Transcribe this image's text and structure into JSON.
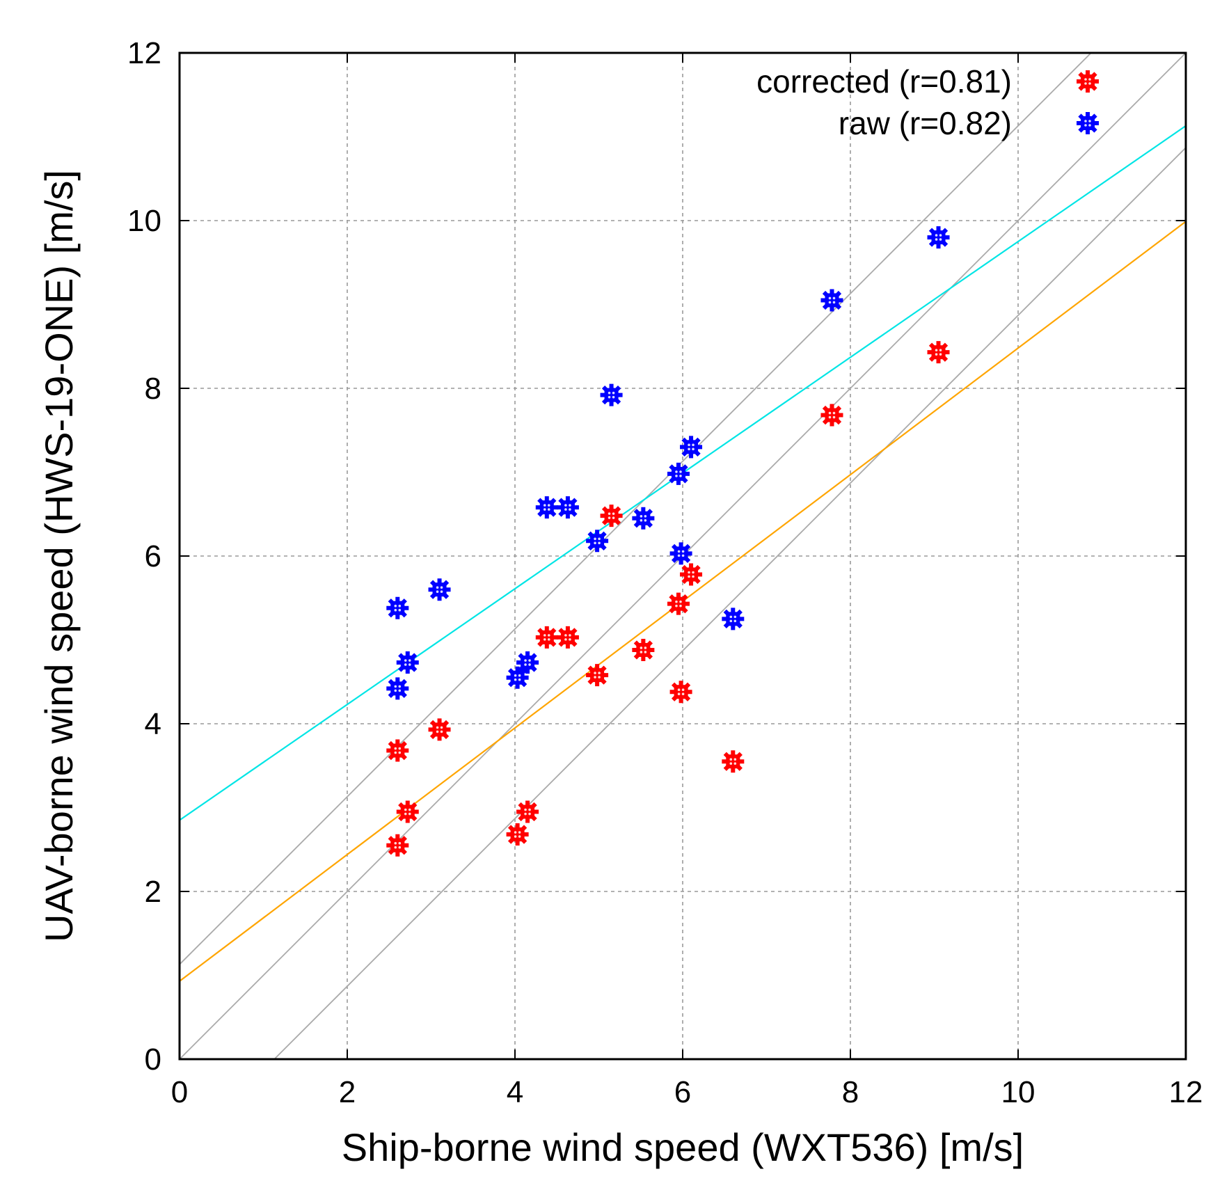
{
  "chart_data": {
    "type": "scatter",
    "title": "",
    "xlabel": "Ship-borne wind speed (WXT536) [m/s]",
    "ylabel": "UAV-borne wind speed (HWS-19-ONE) [m/s]",
    "xlim": [
      0,
      12
    ],
    "ylim": [
      0,
      12
    ],
    "xticks": [
      "0",
      "2",
      "4",
      "6",
      "8",
      "10",
      "12"
    ],
    "yticks": [
      "0",
      "2",
      "4",
      "6",
      "8",
      "10",
      "12"
    ],
    "grid": true,
    "legend_position": "top-right",
    "series": [
      {
        "name": "corrected (r=0.81)",
        "color": "#ff0000",
        "marker": "asterisk",
        "points": [
          [
            2.6,
            2.55
          ],
          [
            2.6,
            3.68
          ],
          [
            2.72,
            2.95
          ],
          [
            3.1,
            3.93
          ],
          [
            4.03,
            2.68
          ],
          [
            4.15,
            2.95
          ],
          [
            4.38,
            5.03
          ],
          [
            4.63,
            5.03
          ],
          [
            4.98,
            4.58
          ],
          [
            5.15,
            6.48
          ],
          [
            5.53,
            4.88
          ],
          [
            5.95,
            5.43
          ],
          [
            5.98,
            4.38
          ],
          [
            6.1,
            5.78
          ],
          [
            6.6,
            3.55
          ],
          [
            7.78,
            7.68
          ],
          [
            9.05,
            8.43
          ]
        ]
      },
      {
        "name": "raw (r=0.82)",
        "color": "#0000ff",
        "marker": "asterisk",
        "points": [
          [
            2.6,
            4.42
          ],
          [
            2.6,
            5.38
          ],
          [
            2.72,
            4.73
          ],
          [
            3.1,
            5.6
          ],
          [
            4.03,
            4.55
          ],
          [
            4.15,
            4.73
          ],
          [
            4.38,
            6.58
          ],
          [
            4.63,
            6.58
          ],
          [
            4.98,
            6.18
          ],
          [
            5.15,
            7.92
          ],
          [
            5.53,
            6.45
          ],
          [
            5.95,
            6.98
          ],
          [
            5.98,
            6.03
          ],
          [
            6.1,
            7.3
          ],
          [
            6.6,
            5.25
          ],
          [
            7.78,
            9.05
          ],
          [
            9.05,
            9.8
          ]
        ]
      }
    ],
    "fit_lines": [
      {
        "name": "corrected fit",
        "color": "#ffa500",
        "intercept": 0.93,
        "slope": 0.755
      },
      {
        "name": "raw fit",
        "color": "#00e5e5",
        "intercept": 2.85,
        "slope": 0.69
      }
    ],
    "reference_lines": [
      {
        "name": "1:1 line",
        "color": "#aaaaaa",
        "intercept": 0,
        "slope": 1
      },
      {
        "name": "1:1 line +1.13",
        "color": "#aaaaaa",
        "intercept": 1.13,
        "slope": 1
      },
      {
        "name": "1:1 line -1.13",
        "color": "#aaaaaa",
        "intercept": -1.13,
        "slope": 1
      }
    ]
  }
}
